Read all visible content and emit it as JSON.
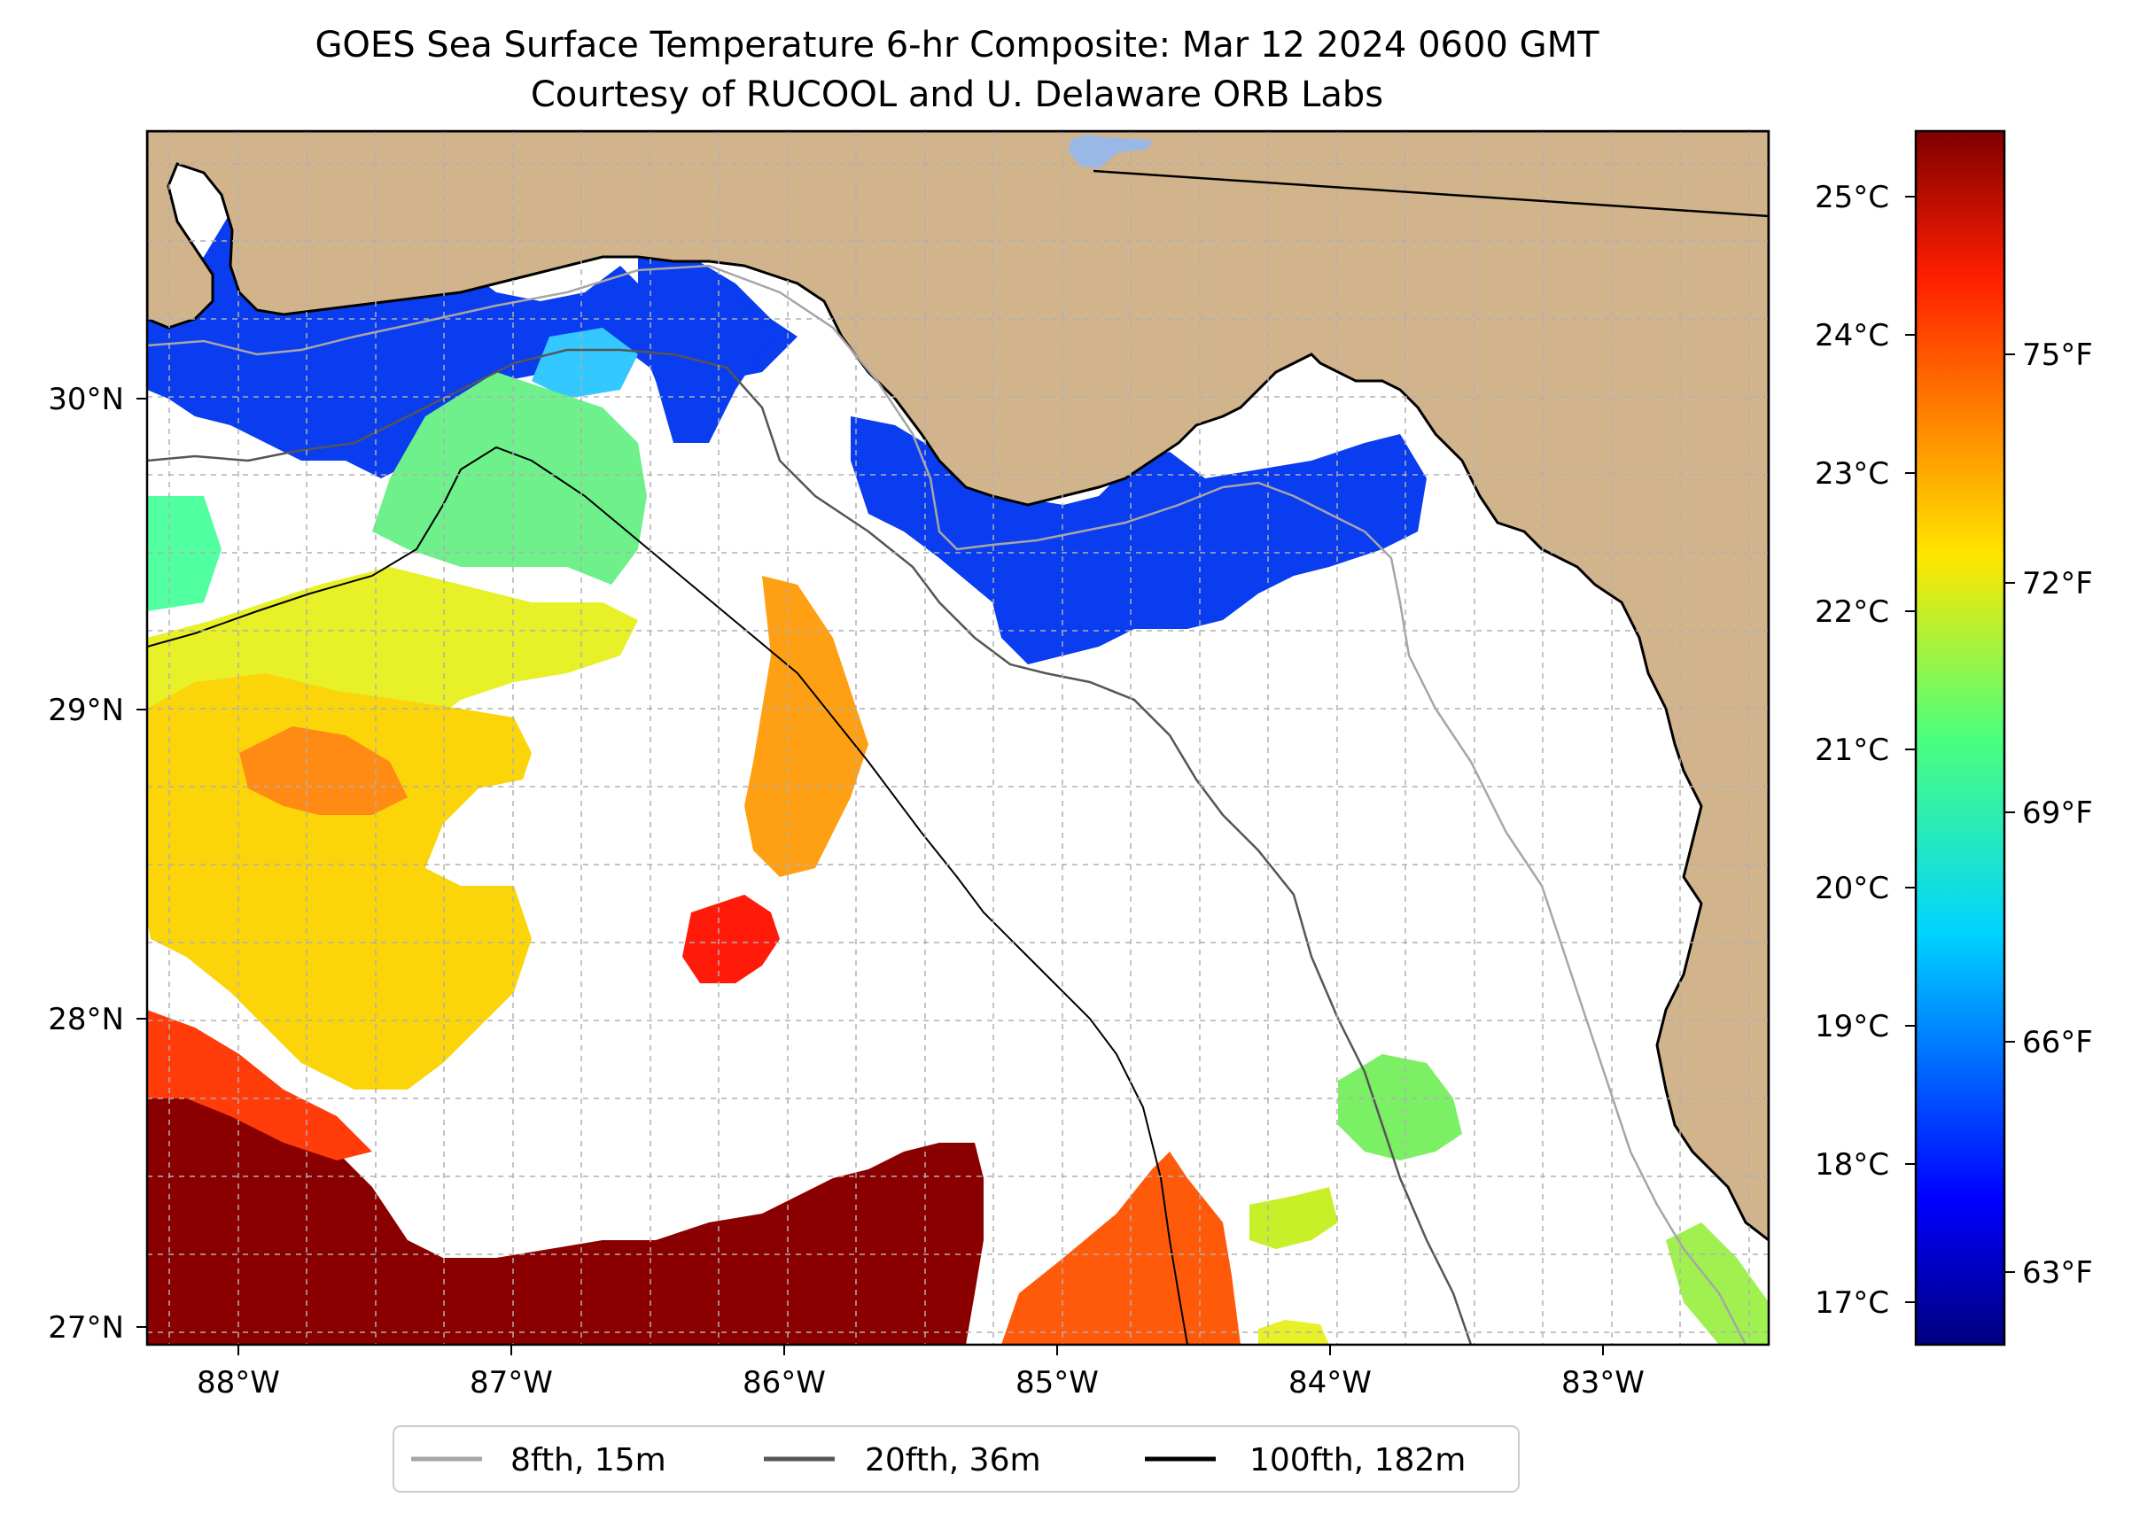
{
  "title": {
    "line1": "GOES Sea Surface Temperature 6-hr Composite: Mar 12 2024 0600 GMT",
    "line2": "Courtesy of RUCOOL and U. Delaware ORB Labs"
  },
  "map": {
    "lon_ticks": [
      "88°W",
      "87°W",
      "86°W",
      "85°W",
      "84°W",
      "83°W"
    ],
    "lat_ticks": [
      "30°N",
      "29°N",
      "28°N",
      "27°N"
    ],
    "land_color": "#d2b48c",
    "ocean_no_data_color": "#ffffff"
  },
  "colorbar": {
    "celsius_ticks": [
      "25°C",
      "24°C",
      "23°C",
      "22°C",
      "21°C",
      "20°C",
      "19°C",
      "18°C",
      "17°C"
    ],
    "fahrenheit_ticks": [
      "75°F",
      "72°F",
      "69°F",
      "66°F",
      "63°F"
    ],
    "colormap": "jet"
  },
  "legend": {
    "items": [
      {
        "label": "8fth, 15m",
        "color": "#a6a6a6"
      },
      {
        "label": "20fth, 36m",
        "color": "#555555"
      },
      {
        "label": "100fth, 182m",
        "color": "#000000"
      }
    ]
  }
}
